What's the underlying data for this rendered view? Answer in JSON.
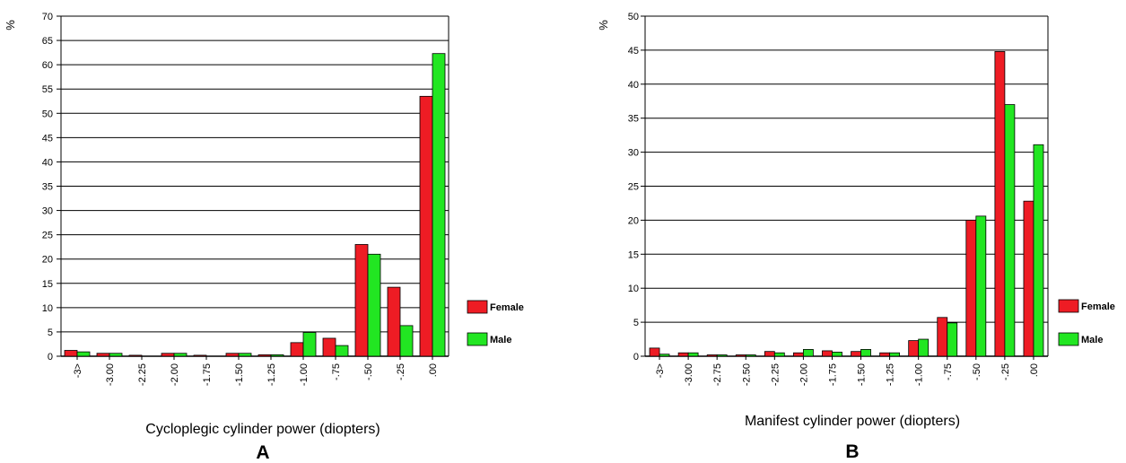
{
  "colors": {
    "female": "#ee1c24",
    "male": "#22e622"
  },
  "chart_data": [
    {
      "type": "bar",
      "panel_label": "A",
      "xlabel": "Cycloplegic cylinder power (diopters)",
      "ylabel": "%",
      "ylim": [
        0,
        70
      ],
      "yticks": [
        0,
        5,
        10,
        15,
        20,
        25,
        30,
        35,
        40,
        45,
        50,
        55,
        60,
        65,
        70
      ],
      "grid": true,
      "legend": "right",
      "categories": [
        "-3>",
        "-3.00",
        "-2.25",
        "-2.00",
        "-1.75",
        "-1.50",
        "-1.25",
        "-1.00",
        "-.75",
        "-.50",
        "-.25",
        ".00"
      ],
      "series": [
        {
          "name": "Female",
          "values": [
            1.2,
            0.6,
            0.2,
            0.6,
            0.2,
            0.6,
            0.3,
            2.8,
            3.7,
            23,
            14.2,
            53.5
          ]
        },
        {
          "name": "Male",
          "values": [
            0.9,
            0.6,
            0.0,
            0.6,
            0.0,
            0.6,
            0.3,
            4.9,
            2.2,
            21,
            6.3,
            62.3
          ]
        }
      ]
    },
    {
      "type": "bar",
      "panel_label": "B",
      "xlabel": "Manifest cylinder power (diopters)",
      "ylabel": "%",
      "ylim": [
        0,
        50
      ],
      "yticks": [
        0,
        5,
        10,
        15,
        20,
        25,
        30,
        35,
        40,
        45,
        50
      ],
      "grid": true,
      "legend": "right",
      "categories": [
        "-3>",
        "-3.00",
        "-2.75",
        "-2.50",
        "-2.25",
        "-2.00",
        "-1.75",
        "-1.50",
        "-1.25",
        "-1.00",
        "-.75",
        "-.50",
        "-.25",
        ".00"
      ],
      "series": [
        {
          "name": "Female",
          "values": [
            1.2,
            0.5,
            0.2,
            0.2,
            0.7,
            0.5,
            0.8,
            0.7,
            0.5,
            2.3,
            5.7,
            20,
            44.8,
            22.8
          ]
        },
        {
          "name": "Male",
          "values": [
            0.3,
            0.5,
            0.2,
            0.2,
            0.5,
            1.0,
            0.6,
            1.0,
            0.5,
            2.5,
            4.9,
            20.6,
            37,
            31.1
          ]
        }
      ]
    }
  ]
}
